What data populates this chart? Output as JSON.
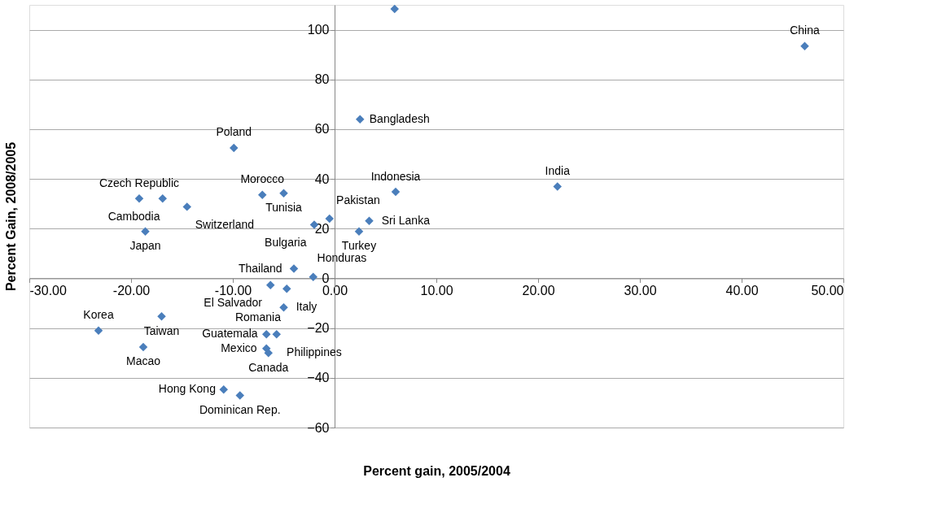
{
  "chart_data": {
    "type": "scatter",
    "xlabel": "Percent gain, 2005/2004",
    "ylabel": "Percent Gain, 2008/2005",
    "x": [
      5.9,
      46.2,
      2.5,
      -9.9,
      6.0,
      21.9,
      -19.2,
      -16.9,
      -14.5,
      -7.1,
      -5.0,
      -18.6,
      -0.5,
      -2.0,
      3.4,
      2.4,
      -4.0,
      -2.1,
      -6.3,
      -4.7,
      -5.0,
      -6.7,
      -5.7,
      -6.7,
      -6.5,
      -10.9,
      -9.3,
      -23.2,
      -17.0,
      -18.8
    ],
    "series": [
      {
        "color": "#4a7ebb",
        "values": [
          108.4,
          93.4,
          64,
          52.5,
          34.8,
          36.9,
          32.1,
          32.1,
          28.8,
          33.6,
          34.2,
          18.9,
          24,
          21.6,
          23.1,
          18.9,
          3.9,
          0.6,
          -2.7,
          -4.2,
          -11.7,
          -22.5,
          -22.5,
          -28.2,
          -30,
          -44.7,
          -47.1,
          -21,
          -15.3,
          -27.6
        ]
      }
    ],
    "marker": "diamond",
    "grid": "y",
    "legend": false,
    "xlim": [
      -30,
      50
    ],
    "ylim": [
      -60,
      110
    ],
    "xticks": [
      {
        "value": -30,
        "label": "-30.00"
      },
      {
        "value": -20,
        "label": "-20.00"
      },
      {
        "value": -10,
        "label": "-10.00"
      },
      {
        "value": 0,
        "label": "0.00"
      },
      {
        "value": 10,
        "label": "10.00"
      },
      {
        "value": 20,
        "label": "20.00"
      },
      {
        "value": 30,
        "label": "30.00"
      },
      {
        "value": 40,
        "label": "40.00"
      },
      {
        "value": 50,
        "label": "50.00"
      }
    ],
    "yticks": [
      -60,
      -40,
      -20,
      0,
      20,
      40,
      60,
      80,
      100
    ],
    "annotations": [
      {
        "text": "China",
        "x": 46.2,
        "y": 93.4
      },
      {
        "text": "Bangladesh",
        "x": 2.5,
        "y": 64
      },
      {
        "text": "Poland",
        "x": -9.9,
        "y": 52.5
      },
      {
        "text": "Indonesia",
        "x": 6.0,
        "y": 34.8
      },
      {
        "text": "India",
        "x": 21.9,
        "y": 36.9
      },
      {
        "text": "Czech Republic",
        "x": -19.2,
        "y": 32.1
      },
      {
        "text": "Cambodia",
        "x": -16.9,
        "y": 32.1
      },
      {
        "text": "Switzerland",
        "x": -14.5,
        "y": 28.8
      },
      {
        "text": "Morocco",
        "x": -7.1,
        "y": 33.6
      },
      {
        "text": "Tunisia",
        "x": -5.0,
        "y": 34.2
      },
      {
        "text": "Japan",
        "x": -18.6,
        "y": 18.9
      },
      {
        "text": "Pakistan",
        "x": -0.5,
        "y": 24
      },
      {
        "text": "Bulgaria",
        "x": -2.0,
        "y": 21.6
      },
      {
        "text": "Sri Lanka",
        "x": 3.4,
        "y": 23.1
      },
      {
        "text": "Turkey",
        "x": 2.4,
        "y": 18.9
      },
      {
        "text": "Thailand",
        "x": -4.0,
        "y": 3.9
      },
      {
        "text": "Honduras",
        "x": -2.1,
        "y": 0.6
      },
      {
        "text": "El Salvador",
        "x": -6.3,
        "y": -2.7
      },
      {
        "text": "Italy",
        "x": -4.7,
        "y": -4.2
      },
      {
        "text": "Romania",
        "x": -5.0,
        "y": -11.7
      },
      {
        "text": "Guatemala",
        "x": -6.7,
        "y": -22.5
      },
      {
        "text": "Philippines",
        "x": -5.7,
        "y": -22.5
      },
      {
        "text": "Mexico",
        "x": -6.7,
        "y": -28.2
      },
      {
        "text": "Canada",
        "x": -6.5,
        "y": -30
      },
      {
        "text": "Hong Kong",
        "x": -10.9,
        "y": -44.7
      },
      {
        "text": "Dominican Rep.",
        "x": -9.3,
        "y": -47.1
      },
      {
        "text": "Korea",
        "x": -23.2,
        "y": -21
      },
      {
        "text": "Taiwan",
        "x": -17.0,
        "y": -15.3
      },
      {
        "text": "Macao",
        "x": -18.8,
        "y": -27.6
      }
    ]
  }
}
